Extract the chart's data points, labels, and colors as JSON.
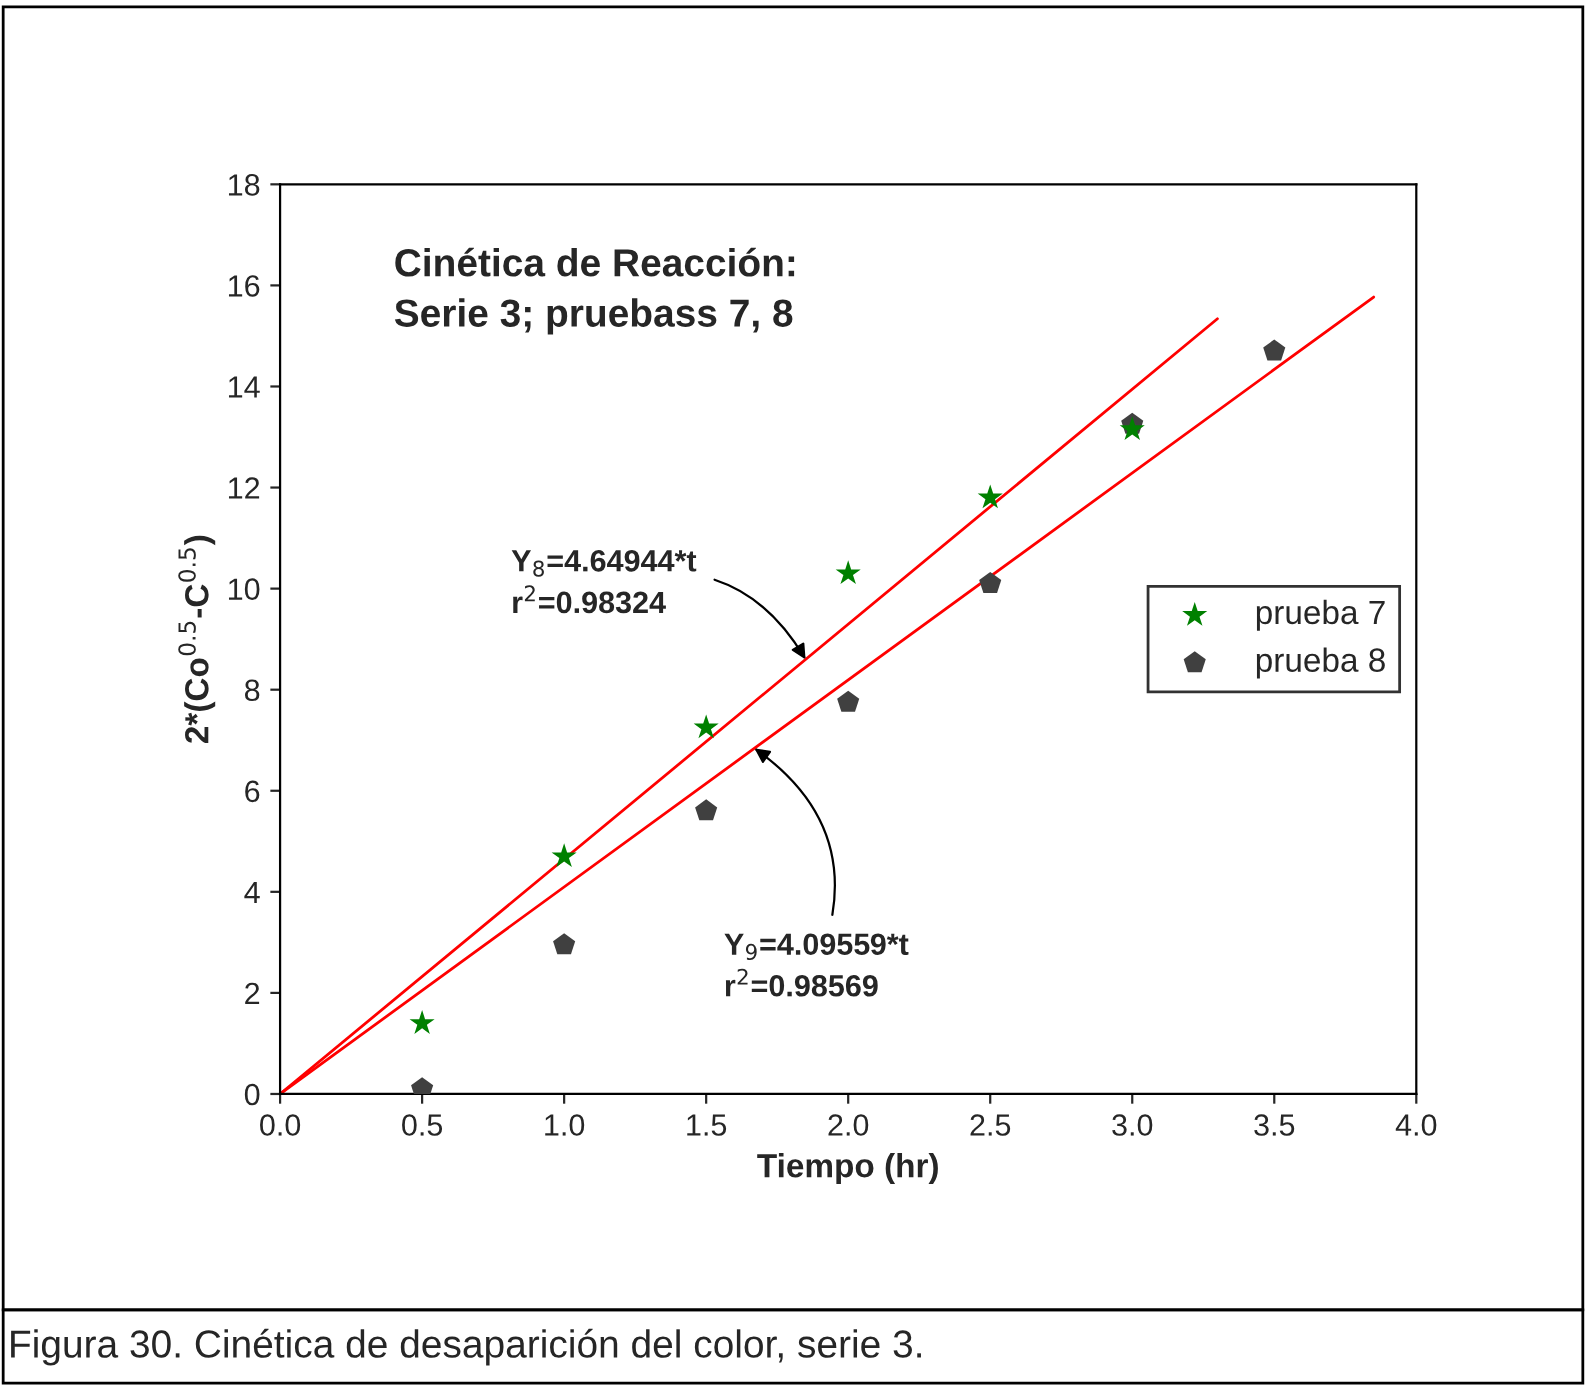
{
  "chart_data": {
    "type": "scatter",
    "title": "Cinética de Reacción:\nSerie 3; pruebass 7, 8",
    "xlabel": "Tiempo (hr)",
    "ylabel": "2*(Co$^{0.5}$-C$^{0.5}$)",
    "xlim": [
      0,
      4.0
    ],
    "ylim": [
      0,
      18
    ],
    "xticks": [
      {
        "value": 0,
        "label": "0.0"
      },
      {
        "value": 0.5,
        "label": "0.5"
      },
      {
        "value": 1.0,
        "label": "1.0"
      },
      {
        "value": 1.5,
        "label": "1.5"
      },
      {
        "value": 2.0,
        "label": "2.0"
      },
      {
        "value": 2.5,
        "label": "2.5"
      },
      {
        "value": 3.0,
        "label": "3.0"
      },
      {
        "value": 3.5,
        "label": "3.5"
      },
      {
        "value": 4.0,
        "label": "4.0"
      }
    ],
    "yticks": [
      0,
      2,
      4,
      6,
      8,
      10,
      12,
      14,
      16,
      18
    ],
    "series": [
      {
        "name": "prueba 7",
        "color": "#008000",
        "marker": "star",
        "x": [
          0.5,
          1.0,
          1.5,
          2.0,
          2.5,
          3.0
        ],
        "values": [
          1.4,
          4.7,
          7.25,
          10.3,
          11.8,
          13.15
        ]
      },
      {
        "name": "prueba 8",
        "color": "#404040",
        "x": [
          0.5,
          1.0,
          1.5,
          2.0,
          2.5,
          3.0,
          3.5
        ],
        "values": [
          0.1,
          2.95,
          5.6,
          7.75,
          10.1,
          13.25,
          14.7
        ]
      },
      {
        "type": "line",
        "color": "#ff0000",
        "x": [
          0,
          3.3
        ],
        "values": [
          0,
          15.34
        ]
      },
      {
        "type": "line",
        "color": "#ff0000",
        "x": [
          0,
          3.85
        ],
        "values": [
          0,
          15.77
        ]
      }
    ],
    "annotations": [
      {
        "text": "Y$_{8}$=4.64944*t\nr$^{2}$=0.98324",
        "x": 1.85,
        "y": 8.6
      },
      {
        "text": "Y$_{9}$=4.09559*t\nr$^{2}$=0.98569",
        "x": 1.67,
        "y": 6.84
      },
      "Figura 30. Cinética de desaparición del color, serie 3."
    ],
    "legend": "center right",
    "grid": false
  }
}
